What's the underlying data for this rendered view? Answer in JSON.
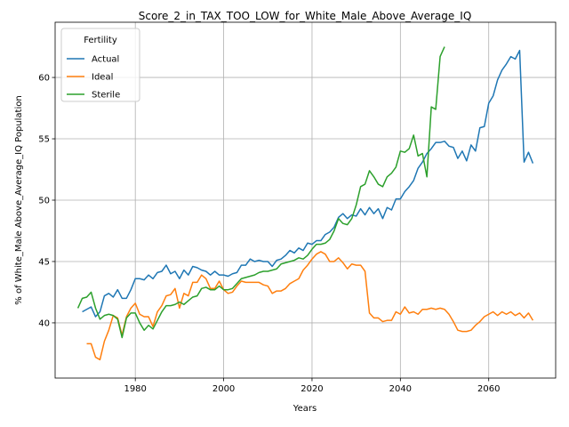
{
  "chart_data": {
    "type": "line",
    "title": "Score_2_in_TAX_TOO_LOW_for_White_Male_Above_Average_IQ",
    "xlabel": "Years",
    "ylabel": "% of White_Male Above_Average_IQ Population",
    "legend_title": "Fertility",
    "legend": "upper left",
    "grid": true,
    "xlim": [
      1961.85,
      2075.15
    ],
    "ylim": [
      35.5,
      64.5
    ],
    "xticks": [
      1980,
      2000,
      2020,
      2040,
      2060
    ],
    "yticks": [
      40,
      45,
      50,
      55,
      60
    ],
    "x": [
      1967,
      1968,
      1969,
      1970,
      1971,
      1972,
      1973,
      1974,
      1975,
      1976,
      1977,
      1978,
      1979,
      1980,
      1981,
      1982,
      1983,
      1984,
      1985,
      1986,
      1987,
      1988,
      1989,
      1990,
      1991,
      1992,
      1993,
      1994,
      1995,
      1996,
      1997,
      1998,
      1999,
      2000,
      2001,
      2002,
      2003,
      2004,
      2005,
      2006,
      2007,
      2008,
      2009,
      2010,
      2011,
      2012,
      2013,
      2014,
      2015,
      2016,
      2017,
      2018,
      2019,
      2020,
      2021,
      2022,
      2023,
      2024,
      2025,
      2026,
      2027,
      2028,
      2029,
      2030,
      2031,
      2032,
      2033,
      2034,
      2035,
      2036,
      2037,
      2038,
      2039,
      2040,
      2041,
      2042,
      2043,
      2044,
      2045,
      2046,
      2047,
      2048,
      2049,
      2050,
      2051,
      2052,
      2053,
      2054,
      2055,
      2056,
      2057,
      2058,
      2059,
      2060,
      2061,
      2062,
      2063,
      2064,
      2065,
      2066,
      2067,
      2068,
      2069,
      2070
    ],
    "series": [
      {
        "name": "Actual",
        "color": "#1f77b4",
        "values": [
          null,
          40.9,
          41.1,
          41.3,
          40.5,
          40.9,
          42.2,
          42.4,
          42.1,
          42.7,
          42.0,
          42.0,
          42.7,
          43.6,
          43.6,
          43.5,
          43.9,
          43.6,
          44.1,
          44.2,
          44.7,
          44.0,
          44.2,
          43.6,
          44.3,
          43.9,
          44.6,
          44.5,
          44.3,
          44.2,
          43.9,
          44.2,
          43.9,
          43.9,
          43.8,
          44.0,
          44.1,
          44.7,
          44.7,
          45.2,
          45.0,
          45.1,
          45.0,
          45.0,
          44.6,
          45.1,
          45.2,
          45.5,
          45.9,
          45.7,
          46.1,
          45.9,
          46.5,
          46.4,
          46.7,
          46.7,
          47.2,
          47.4,
          47.8,
          48.6,
          48.9,
          48.5,
          48.8,
          48.7,
          49.3,
          48.8,
          49.4,
          48.9,
          49.3,
          48.5,
          49.4,
          49.2,
          50.1,
          50.1,
          50.7,
          51.1,
          51.6,
          52.6,
          53.1,
          53.8,
          54.2,
          54.7,
          54.7,
          54.8,
          54.4,
          54.3,
          53.4,
          54.0,
          53.2,
          54.5,
          54.0,
          55.9,
          56.0,
          57.9,
          58.5,
          59.8,
          60.6,
          61.1,
          61.7,
          61.5,
          62.2,
          53.1,
          53.9,
          53.0
        ]
      },
      {
        "name": "Ideal",
        "color": "#ff7f0e",
        "values": [
          null,
          null,
          38.3,
          38.3,
          37.2,
          37.0,
          38.5,
          39.4,
          40.6,
          40.4,
          39.0,
          40.5,
          41.2,
          41.6,
          40.7,
          40.5,
          40.5,
          39.7,
          40.9,
          41.4,
          42.2,
          42.3,
          42.8,
          41.2,
          42.4,
          42.2,
          43.3,
          43.3,
          43.9,
          43.6,
          42.8,
          42.8,
          43.4,
          42.7,
          42.4,
          42.5,
          43.0,
          43.4,
          43.3,
          43.3,
          43.3,
          43.3,
          43.1,
          43.0,
          42.4,
          42.6,
          42.6,
          42.8,
          43.2,
          43.4,
          43.6,
          44.3,
          44.7,
          45.2,
          45.6,
          45.8,
          45.6,
          45.0,
          45.0,
          45.3,
          44.9,
          44.4,
          44.8,
          44.7,
          44.7,
          44.2,
          40.8,
          40.4,
          40.4,
          40.1,
          40.2,
          40.2,
          40.9,
          40.7,
          41.3,
          40.8,
          40.9,
          40.7,
          41.1,
          41.1,
          41.2,
          41.1,
          41.2,
          41.1,
          40.7,
          40.1,
          39.4,
          39.3,
          39.3,
          39.4,
          39.8,
          40.1,
          40.5,
          40.7,
          40.9,
          40.6,
          40.9,
          40.7,
          40.9,
          40.6,
          40.8,
          40.4,
          40.8,
          40.2
        ]
      },
      {
        "name": "Sterile",
        "color": "#2ca02c",
        "values": [
          41.2,
          42.0,
          42.1,
          42.5,
          41.2,
          40.3,
          40.6,
          40.7,
          40.6,
          40.3,
          38.8,
          40.4,
          40.8,
          40.8,
          40.0,
          39.4,
          39.8,
          39.5,
          40.2,
          40.9,
          41.4,
          41.4,
          41.5,
          41.7,
          41.5,
          41.8,
          42.1,
          42.2,
          42.8,
          42.9,
          42.7,
          42.7,
          43.0,
          42.7,
          42.7,
          42.8,
          43.2,
          43.6,
          43.7,
          43.8,
          43.9,
          44.1,
          44.2,
          44.2,
          44.3,
          44.4,
          44.8,
          44.9,
          45.0,
          45.1,
          45.3,
          45.2,
          45.5,
          46.0,
          46.4,
          46.4,
          46.5,
          46.8,
          47.5,
          48.5,
          48.1,
          48.0,
          48.5,
          49.6,
          51.1,
          51.3,
          52.4,
          51.9,
          51.3,
          51.1,
          51.9,
          52.2,
          52.7,
          54.0,
          53.9,
          54.2,
          55.3,
          53.6,
          53.8,
          51.9,
          57.6,
          57.4,
          61.7,
          62.5,
          null,
          null,
          null,
          null,
          null,
          null,
          null,
          null,
          null,
          null,
          null,
          null,
          null,
          null,
          null,
          null,
          null,
          null,
          null,
          null
        ]
      }
    ]
  }
}
